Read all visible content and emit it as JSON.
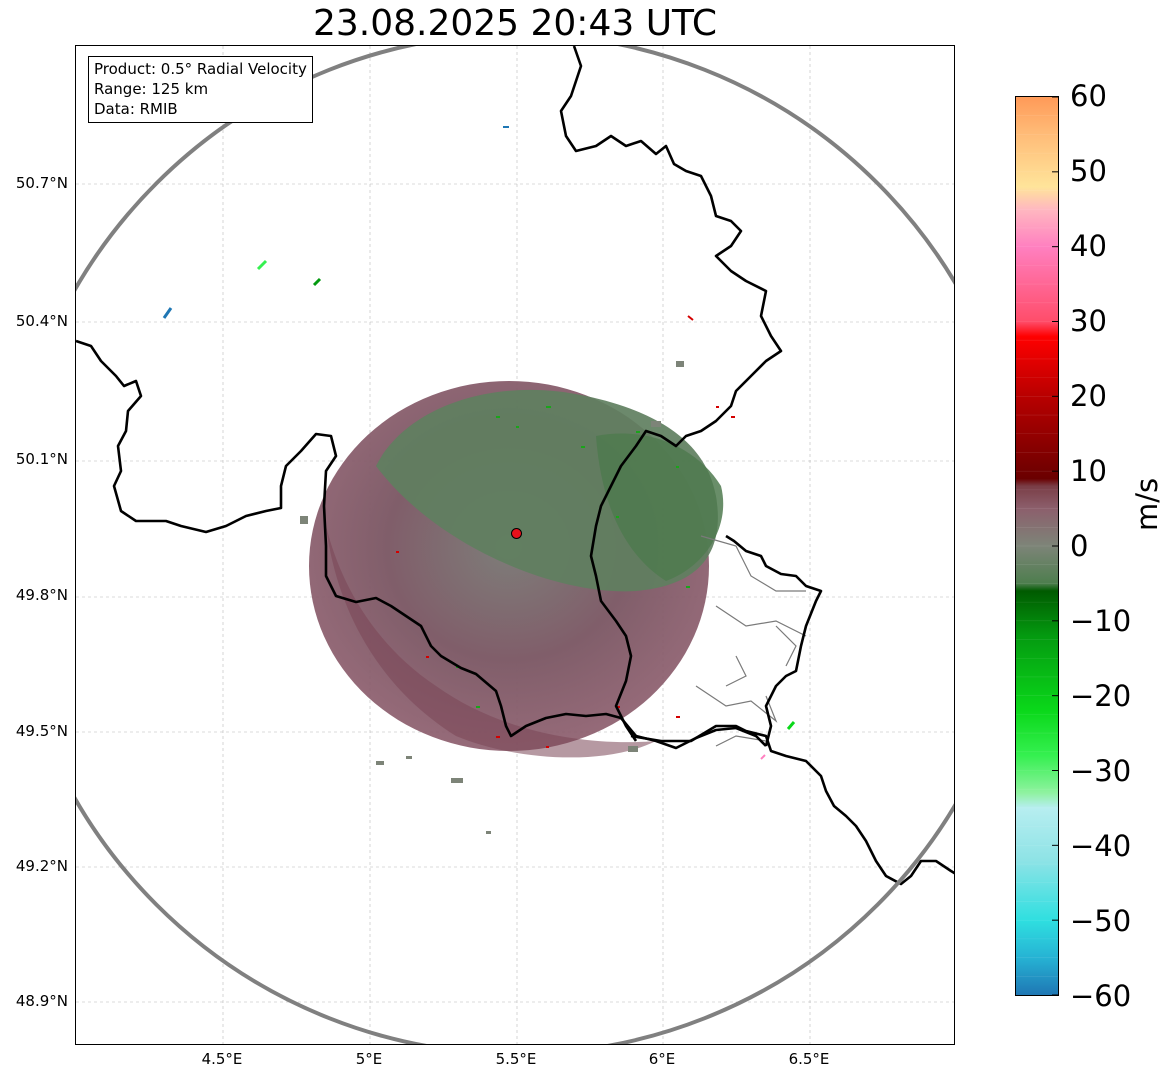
{
  "title": "23.08.2025 20:43 UTC",
  "info": {
    "product": "Product: 0.5° Radial Velocity",
    "range": "Range: 125 km",
    "source": "Data: RMIB"
  },
  "axes": {
    "lat_ticks": [
      "50.7°N",
      "50.4°N",
      "50.1°N",
      "49.8°N",
      "49.5°N",
      "49.2°N",
      "48.9°N"
    ],
    "lon_ticks": [
      "4.5°E",
      "5°E",
      "5.5°E",
      "6°E",
      "6.5°E"
    ],
    "lat_values": [
      50.7,
      50.4,
      50.1,
      49.8,
      49.5,
      49.2,
      48.9
    ],
    "lon_values": [
      4.5,
      5.0,
      5.5,
      6.0,
      6.5
    ],
    "lat_range": [
      48.8,
      50.98
    ],
    "lon_range": [
      4.0,
      7.0
    ]
  },
  "radar_site": {
    "lon": 5.505,
    "lat": 49.914,
    "color": "#e8111b"
  },
  "range_ring_km": 125,
  "colorbar": {
    "label": "m/s",
    "min": -60,
    "max": 60,
    "ticks": [
      "60",
      "50",
      "40",
      "30",
      "20",
      "10",
      "0",
      "−10",
      "−20",
      "−30",
      "−40",
      "−50",
      "−60"
    ],
    "tick_values": [
      60,
      50,
      40,
      30,
      20,
      10,
      0,
      -10,
      -20,
      -30,
      -40,
      -50,
      -60
    ],
    "stops": [
      {
        "v": -60,
        "c": "#1f77b4"
      },
      {
        "v": -55,
        "c": "#26b3d4"
      },
      {
        "v": -50,
        "c": "#2fdfe0"
      },
      {
        "v": -42,
        "c": "#8ee3e6"
      },
      {
        "v": -35,
        "c": "#b7eef0"
      },
      {
        "v": -33,
        "c": "#8ff2a0"
      },
      {
        "v": -28,
        "c": "#35f050"
      },
      {
        "v": -22,
        "c": "#0ad81a"
      },
      {
        "v": -12,
        "c": "#049a10"
      },
      {
        "v": -6,
        "c": "#005a00"
      },
      {
        "v": -5,
        "c": "#4e7e4e"
      },
      {
        "v": 0,
        "c": "#7d8478"
      },
      {
        "v": 5,
        "c": "#8c5f6c"
      },
      {
        "v": 8,
        "c": "#7a3d46"
      },
      {
        "v": 9,
        "c": "#6a0000"
      },
      {
        "v": 20,
        "c": "#b80000"
      },
      {
        "v": 28,
        "c": "#ff0000"
      },
      {
        "v": 30,
        "c": "#ff4d6a"
      },
      {
        "v": 40,
        "c": "#ff80c0"
      },
      {
        "v": 45,
        "c": "#ffb8c0"
      },
      {
        "v": 48,
        "c": "#ffe49a"
      },
      {
        "v": 55,
        "c": "#ffbc78"
      },
      {
        "v": 60,
        "c": "#ff9a58"
      }
    ]
  }
}
